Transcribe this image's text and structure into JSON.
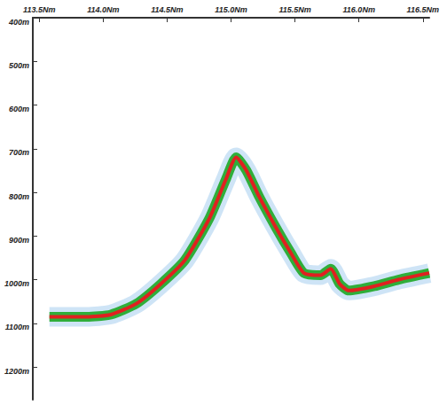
{
  "chart_data": {
    "type": "line",
    "x": [
      113.58,
      113.87,
      114.06,
      114.26,
      114.45,
      114.64,
      114.83,
      114.96,
      115.04,
      115.12,
      115.22,
      115.35,
      115.47,
      115.57,
      115.7,
      115.78,
      115.85,
      115.92,
      116.12,
      116.31,
      116.55
    ],
    "values": [
      1085,
      1085,
      1080,
      1055,
      1010,
      955,
      860,
      770,
      720,
      750,
      810,
      880,
      940,
      985,
      990,
      975,
      1010,
      1025,
      1015,
      1000,
      985
    ],
    "color": "#e02020",
    "xlim": [
      113.45,
      116.55
    ],
    "xticks": [
      {
        "value": 113.5,
        "label": "113.5Nm"
      },
      {
        "value": 114.0,
        "label": "114.0Nm"
      },
      {
        "value": 114.5,
        "label": "114.5Nm"
      },
      {
        "value": 115.0,
        "label": "115.0Nm"
      },
      {
        "value": 115.5,
        "label": "115.5Nm"
      },
      {
        "value": 116.0,
        "label": "116.0Nm"
      },
      {
        "value": 116.5,
        "label": "116.5Nm"
      }
    ],
    "ylim": [
      400,
      1275
    ],
    "yticks": [
      {
        "value": 400,
        "label": "400m"
      },
      {
        "value": 500,
        "label": "500m"
      },
      {
        "value": 600,
        "label": "600m"
      },
      {
        "value": 700,
        "label": "700m"
      },
      {
        "value": 800,
        "label": "800m"
      },
      {
        "value": 900,
        "label": "900m"
      },
      {
        "value": 1000,
        "label": "1000m"
      },
      {
        "value": 1100,
        "label": "1100m"
      },
      {
        "value": 1200,
        "label": "1200m"
      }
    ],
    "grid": false
  }
}
